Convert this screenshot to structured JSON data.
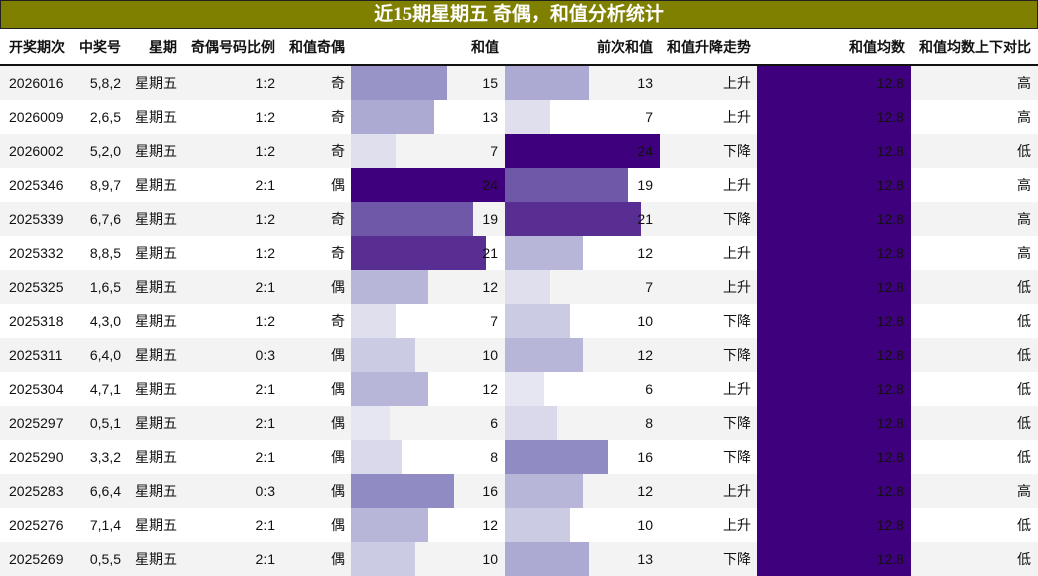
{
  "title": "近15期星期五 奇偶，和值分析统计",
  "columns": {
    "issue": "开奖期次",
    "numbers": "中奖号",
    "weekday": "星期",
    "odd_even_ratio": "奇偶号码比例",
    "sum_parity": "和值奇偶",
    "sum": "和值",
    "prev_sum": "前次和值",
    "trend": "和值升降走势",
    "mean": "和值均数",
    "mean_compare": "和值均数上下对比"
  },
  "colors": {
    "title_bg": "#808000",
    "mean_fill": "#3f007d",
    "bar_scale_min": "#dadaeb",
    "bar_scale_max": "#3f007d",
    "row_alt_bg": "#f3f3f3"
  },
  "bar_max": 24,
  "rows": [
    {
      "issue": "2026016",
      "numbers": "5,8,2",
      "weekday": "星期五",
      "ratio": "1:2",
      "parity": "奇",
      "sum": "15",
      "prev": "13",
      "trend": "上升",
      "mean": "12.8",
      "cmp": "高"
    },
    {
      "issue": "2026009",
      "numbers": "2,6,5",
      "weekday": "星期五",
      "ratio": "1:2",
      "parity": "奇",
      "sum": "13",
      "prev": "7",
      "trend": "上升",
      "mean": "12.8",
      "cmp": "高"
    },
    {
      "issue": "2026002",
      "numbers": "5,2,0",
      "weekday": "星期五",
      "ratio": "1:2",
      "parity": "奇",
      "sum": "7",
      "prev": "24",
      "trend": "下降",
      "mean": "12.8",
      "cmp": "低"
    },
    {
      "issue": "2025346",
      "numbers": "8,9,7",
      "weekday": "星期五",
      "ratio": "2:1",
      "parity": "偶",
      "sum": "24",
      "prev": "19",
      "trend": "上升",
      "mean": "12.8",
      "cmp": "高"
    },
    {
      "issue": "2025339",
      "numbers": "6,7,6",
      "weekday": "星期五",
      "ratio": "1:2",
      "parity": "奇",
      "sum": "19",
      "prev": "21",
      "trend": "下降",
      "mean": "12.8",
      "cmp": "高"
    },
    {
      "issue": "2025332",
      "numbers": "8,8,5",
      "weekday": "星期五",
      "ratio": "1:2",
      "parity": "奇",
      "sum": "21",
      "prev": "12",
      "trend": "上升",
      "mean": "12.8",
      "cmp": "高"
    },
    {
      "issue": "2025325",
      "numbers": "1,6,5",
      "weekday": "星期五",
      "ratio": "2:1",
      "parity": "偶",
      "sum": "12",
      "prev": "7",
      "trend": "上升",
      "mean": "12.8",
      "cmp": "低"
    },
    {
      "issue": "2025318",
      "numbers": "4,3,0",
      "weekday": "星期五",
      "ratio": "1:2",
      "parity": "奇",
      "sum": "7",
      "prev": "10",
      "trend": "下降",
      "mean": "12.8",
      "cmp": "低"
    },
    {
      "issue": "2025311",
      "numbers": "6,4,0",
      "weekday": "星期五",
      "ratio": "0:3",
      "parity": "偶",
      "sum": "10",
      "prev": "12",
      "trend": "下降",
      "mean": "12.8",
      "cmp": "低"
    },
    {
      "issue": "2025304",
      "numbers": "4,7,1",
      "weekday": "星期五",
      "ratio": "2:1",
      "parity": "偶",
      "sum": "12",
      "prev": "6",
      "trend": "上升",
      "mean": "12.8",
      "cmp": "低"
    },
    {
      "issue": "2025297",
      "numbers": "0,5,1",
      "weekday": "星期五",
      "ratio": "2:1",
      "parity": "偶",
      "sum": "6",
      "prev": "8",
      "trend": "下降",
      "mean": "12.8",
      "cmp": "低"
    },
    {
      "issue": "2025290",
      "numbers": "3,3,2",
      "weekday": "星期五",
      "ratio": "2:1",
      "parity": "偶",
      "sum": "8",
      "prev": "16",
      "trend": "下降",
      "mean": "12.8",
      "cmp": "低"
    },
    {
      "issue": "2025283",
      "numbers": "6,6,4",
      "weekday": "星期五",
      "ratio": "0:3",
      "parity": "偶",
      "sum": "16",
      "prev": "12",
      "trend": "上升",
      "mean": "12.8",
      "cmp": "高"
    },
    {
      "issue": "2025276",
      "numbers": "7,1,4",
      "weekday": "星期五",
      "ratio": "2:1",
      "parity": "偶",
      "sum": "12",
      "prev": "10",
      "trend": "上升",
      "mean": "12.8",
      "cmp": "低"
    },
    {
      "issue": "2025269",
      "numbers": "0,5,5",
      "weekday": "星期五",
      "ratio": "2:1",
      "parity": "偶",
      "sum": "10",
      "prev": "13",
      "trend": "下降",
      "mean": "12.8",
      "cmp": "低"
    }
  ]
}
